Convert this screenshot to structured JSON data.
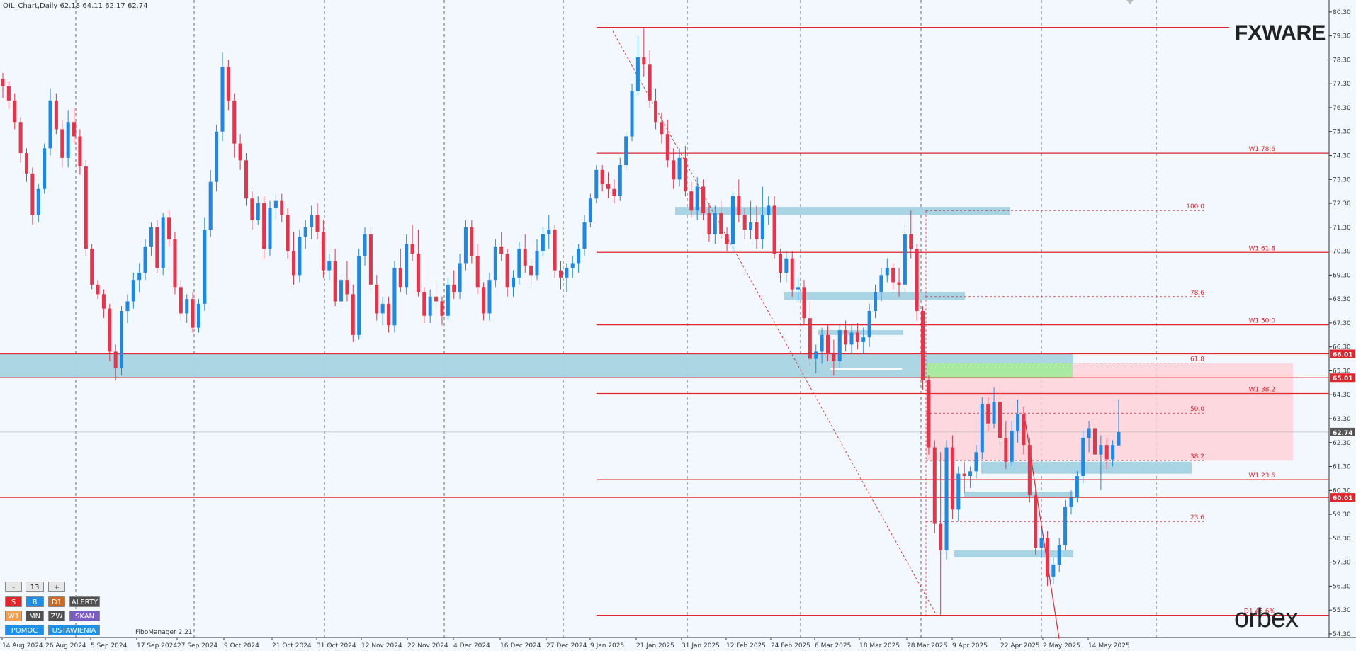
{
  "header": {
    "title": "OIL_Chart,Daily  62.18 64.11 62.17 62.74"
  },
  "brand": {
    "fxware": "FXWARE",
    "orbex": "orbex"
  },
  "chart_data": {
    "type": "candlestick",
    "symbol": "OIL_Chart",
    "timeframe": "Daily",
    "ylim": [
      54.15,
      80.8
    ],
    "y_ticks": [
      "80.30",
      "79.30",
      "78.30",
      "77.30",
      "76.30",
      "75.30",
      "74.30",
      "73.30",
      "72.30",
      "71.30",
      "70.30",
      "69.30",
      "68.30",
      "67.30",
      "66.30",
      "65.30",
      "64.30",
      "63.30",
      "62.30",
      "61.30",
      "60.30",
      "59.30",
      "58.30",
      "57.30",
      "56.30",
      "55.30",
      "54.30"
    ],
    "x_ticks": [
      "14 Aug 2024",
      "26 Aug 2024",
      "5 Sep 2024",
      "17 Sep 2024",
      "27 Sep 2024",
      "9 Oct 2024",
      "21 Oct 2024",
      "31 Oct 2024",
      "12 Nov 2024",
      "22 Nov 2024",
      "4 Dec 2024",
      "16 Dec 2024",
      "27 Dec 2024",
      "9 Jan 2025",
      "21 Jan 2025",
      "31 Jan 2025",
      "12 Feb 2025",
      "24 Feb 2025",
      "6 Mar 2025",
      "18 Mar 2025",
      "28 Mar 2025",
      "9 Apr 2025",
      "22 Apr 2025",
      "2 May 2025",
      "14 May 2025"
    ],
    "price_tags": [
      {
        "label": "66.01",
        "value": 66.01,
        "color": "#e3242b"
      },
      {
        "label": "65.01",
        "value": 65.01,
        "color": "#e3242b"
      },
      {
        "label": "62.74",
        "value": 62.74,
        "color": "#555555"
      },
      {
        "label": "60.01",
        "value": 60.01,
        "color": "#e3242b"
      }
    ],
    "weekly_fib_levels": [
      {
        "label": "W1 78.6",
        "value": 74.4
      },
      {
        "label": "W1 61.8",
        "value": 70.25
      },
      {
        "label": "W1 50.0",
        "value": 67.22
      },
      {
        "label": "W1 38.2",
        "value": 64.35
      },
      {
        "label": "W1 23.6",
        "value": 60.75
      },
      {
        "label": "D1 45.6%",
        "value": 55.08
      }
    ],
    "daily_fib_levels": [
      {
        "label": "100.0",
        "value": 72.0
      },
      {
        "label": "78.6",
        "value": 68.4
      },
      {
        "label": "61.8",
        "value": 65.62
      },
      {
        "label": "50.0",
        "value": 63.53
      },
      {
        "label": "38.2",
        "value": 61.55
      },
      {
        "label": "23.6",
        "value": 59.0
      }
    ],
    "top_level": 79.65,
    "candles": [
      [
        77.5,
        77.75,
        76.7,
        77.2
      ],
      [
        77.2,
        77.4,
        76.25,
        76.6
      ],
      [
        76.6,
        76.9,
        75.4,
        75.7
      ],
      [
        75.7,
        75.9,
        74.0,
        74.4
      ],
      [
        74.4,
        74.6,
        73.2,
        73.55
      ],
      [
        73.55,
        73.8,
        71.4,
        71.8
      ],
      [
        71.8,
        73.1,
        71.5,
        72.9
      ],
      [
        72.9,
        74.8,
        72.7,
        74.6
      ],
      [
        74.6,
        77.1,
        74.3,
        76.6
      ],
      [
        76.6,
        76.9,
        75.2,
        75.4
      ],
      [
        75.4,
        75.8,
        73.8,
        74.2
      ],
      [
        74.2,
        76.2,
        73.8,
        75.7
      ],
      [
        75.7,
        76.3,
        74.8,
        75.1
      ],
      [
        75.1,
        75.4,
        73.5,
        73.85
      ],
      [
        73.85,
        74.1,
        70.1,
        70.4
      ],
      [
        70.4,
        70.6,
        68.7,
        68.9
      ],
      [
        68.9,
        69.1,
        68.3,
        68.5
      ],
      [
        68.5,
        68.7,
        67.5,
        67.9
      ],
      [
        67.9,
        68.1,
        65.7,
        66.1
      ],
      [
        66.1,
        66.4,
        64.9,
        65.4
      ],
      [
        65.4,
        68.0,
        65.1,
        67.8
      ],
      [
        67.8,
        68.5,
        67.3,
        68.2
      ],
      [
        68.2,
        69.4,
        67.9,
        69.1
      ],
      [
        69.1,
        69.8,
        68.6,
        69.4
      ],
      [
        69.4,
        70.8,
        69.1,
        70.5
      ],
      [
        70.5,
        71.5,
        70.1,
        71.3
      ],
      [
        71.3,
        71.6,
        69.4,
        69.6
      ],
      [
        69.6,
        71.9,
        69.3,
        71.7
      ],
      [
        71.7,
        72.0,
        70.5,
        70.8
      ],
      [
        70.8,
        71.1,
        68.5,
        68.8
      ],
      [
        68.8,
        69.1,
        67.4,
        67.7
      ],
      [
        67.7,
        68.5,
        67.3,
        68.3
      ],
      [
        68.3,
        68.6,
        66.9,
        67.1
      ],
      [
        67.1,
        68.3,
        66.9,
        68.1
      ],
      [
        68.1,
        71.7,
        67.8,
        71.2
      ],
      [
        71.2,
        73.7,
        70.9,
        73.2
      ],
      [
        73.2,
        75.6,
        72.8,
        75.3
      ],
      [
        75.3,
        78.6,
        74.9,
        78.0
      ],
      [
        78.0,
        78.3,
        76.2,
        76.6
      ],
      [
        76.6,
        76.9,
        74.2,
        74.8
      ],
      [
        74.8,
        75.2,
        73.7,
        74.1
      ],
      [
        74.1,
        74.4,
        72.2,
        72.5
      ],
      [
        72.5,
        72.8,
        71.2,
        71.6
      ],
      [
        71.6,
        72.6,
        71.4,
        72.3
      ],
      [
        72.3,
        72.6,
        70.0,
        70.4
      ],
      [
        70.4,
        72.4,
        70.1,
        72.1
      ],
      [
        72.1,
        72.7,
        71.6,
        72.4
      ],
      [
        72.4,
        72.7,
        71.5,
        71.8
      ],
      [
        71.8,
        72.1,
        70.0,
        70.3
      ],
      [
        70.3,
        71.1,
        68.9,
        69.3
      ],
      [
        69.3,
        71.2,
        69.0,
        70.9
      ],
      [
        70.9,
        71.6,
        70.4,
        71.3
      ],
      [
        71.3,
        72.2,
        70.8,
        71.8
      ],
      [
        71.8,
        72.3,
        70.8,
        71.1
      ],
      [
        71.1,
        71.6,
        69.2,
        69.5
      ],
      [
        69.5,
        70.2,
        69.1,
        69.9
      ],
      [
        69.9,
        70.4,
        68.0,
        68.2
      ],
      [
        68.2,
        69.4,
        67.9,
        69.1
      ],
      [
        69.1,
        69.9,
        68.2,
        68.5
      ],
      [
        68.5,
        68.9,
        66.5,
        66.8
      ],
      [
        66.8,
        70.4,
        66.6,
        70.1
      ],
      [
        70.1,
        71.3,
        69.7,
        71.0
      ],
      [
        71.0,
        71.3,
        68.7,
        68.9
      ],
      [
        68.9,
        69.3,
        67.4,
        67.7
      ],
      [
        67.7,
        68.4,
        67.2,
        68.1
      ],
      [
        68.1,
        68.4,
        66.9,
        67.2
      ],
      [
        67.2,
        69.9,
        66.9,
        69.6
      ],
      [
        69.6,
        70.4,
        68.6,
        68.8
      ],
      [
        68.8,
        71.0,
        68.5,
        70.6
      ],
      [
        70.6,
        71.4,
        69.9,
        70.2
      ],
      [
        70.2,
        71.2,
        68.4,
        68.6
      ],
      [
        68.6,
        68.8,
        67.3,
        67.6
      ],
      [
        67.6,
        68.7,
        67.3,
        68.4
      ],
      [
        68.4,
        69.1,
        67.9,
        68.2
      ],
      [
        68.2,
        68.4,
        67.2,
        67.6
      ],
      [
        67.6,
        69.2,
        67.4,
        68.9
      ],
      [
        68.9,
        69.5,
        68.3,
        68.6
      ],
      [
        68.6,
        70.2,
        68.3,
        69.8
      ],
      [
        69.8,
        71.6,
        69.5,
        71.3
      ],
      [
        71.3,
        71.6,
        69.8,
        70.1
      ],
      [
        70.1,
        70.6,
        68.5,
        68.8
      ],
      [
        68.8,
        69.0,
        67.4,
        67.7
      ],
      [
        67.7,
        69.4,
        67.4,
        69.1
      ],
      [
        69.1,
        70.8,
        68.8,
        70.5
      ],
      [
        70.5,
        71.1,
        69.9,
        70.2
      ],
      [
        70.2,
        70.4,
        68.4,
        68.8
      ],
      [
        68.8,
        69.5,
        68.4,
        69.2
      ],
      [
        69.2,
        70.7,
        68.9,
        70.4
      ],
      [
        70.4,
        71.0,
        69.4,
        69.7
      ],
      [
        69.7,
        70.0,
        68.9,
        69.3
      ],
      [
        69.3,
        70.8,
        69.1,
        70.3
      ],
      [
        70.3,
        71.3,
        70.1,
        71.0
      ],
      [
        71.0,
        71.8,
        70.4,
        71.2
      ],
      [
        71.2,
        71.4,
        69.2,
        69.5
      ],
      [
        69.5,
        69.9,
        68.7,
        69.2
      ],
      [
        69.2,
        69.8,
        68.6,
        69.6
      ],
      [
        69.6,
        70.1,
        69.2,
        69.8
      ],
      [
        69.8,
        70.6,
        69.4,
        70.4
      ],
      [
        70.4,
        71.8,
        70.1,
        71.5
      ],
      [
        71.5,
        72.7,
        71.3,
        72.5
      ],
      [
        72.5,
        73.9,
        72.3,
        73.7
      ],
      [
        73.7,
        73.9,
        72.8,
        73.1
      ],
      [
        73.1,
        73.6,
        72.5,
        72.9
      ],
      [
        72.9,
        73.3,
        72.3,
        72.6
      ],
      [
        72.6,
        74.2,
        72.4,
        73.9
      ],
      [
        73.9,
        75.3,
        73.7,
        75.1
      ],
      [
        75.1,
        77.3,
        74.9,
        77.0
      ],
      [
        77.0,
        79.3,
        76.8,
        78.4
      ],
      [
        78.4,
        79.6,
        77.6,
        78.1
      ],
      [
        78.1,
        78.7,
        76.3,
        76.6
      ],
      [
        76.6,
        77.1,
        75.4,
        75.7
      ],
      [
        75.7,
        76.1,
        74.8,
        75.2
      ],
      [
        75.2,
        75.8,
        73.8,
        74.1
      ],
      [
        74.1,
        74.6,
        72.9,
        73.3
      ],
      [
        73.3,
        74.6,
        73.0,
        74.2
      ],
      [
        74.2,
        74.7,
        72.6,
        72.8
      ],
      [
        72.8,
        73.2,
        71.7,
        72.0
      ],
      [
        72.0,
        73.4,
        71.6,
        73.0
      ],
      [
        73.0,
        73.3,
        71.6,
        71.9
      ],
      [
        71.9,
        72.3,
        70.7,
        71.0
      ],
      [
        71.0,
        72.2,
        70.6,
        71.9
      ],
      [
        71.9,
        72.4,
        70.8,
        71.0
      ],
      [
        71.0,
        71.3,
        70.3,
        70.6
      ],
      [
        70.6,
        72.8,
        70.3,
        72.6
      ],
      [
        72.6,
        73.3,
        71.5,
        71.8
      ],
      [
        71.8,
        72.1,
        70.8,
        71.2
      ],
      [
        71.2,
        72.4,
        70.8,
        71.5
      ],
      [
        71.5,
        72.2,
        70.4,
        70.8
      ],
      [
        70.8,
        73.0,
        70.4,
        71.8
      ],
      [
        71.8,
        72.6,
        71.4,
        72.2
      ],
      [
        72.2,
        72.6,
        70.0,
        70.2
      ],
      [
        70.2,
        70.4,
        69.0,
        69.4
      ],
      [
        69.4,
        70.3,
        69.0,
        70.0
      ],
      [
        70.0,
        70.3,
        68.4,
        68.7
      ],
      [
        68.7,
        69.2,
        68.2,
        68.8
      ],
      [
        68.8,
        69.1,
        67.2,
        67.5
      ],
      [
        67.5,
        68.2,
        65.5,
        65.8
      ],
      [
        65.8,
        66.4,
        65.2,
        66.1
      ],
      [
        66.1,
        67.1,
        65.6,
        66.8
      ],
      [
        66.8,
        67.2,
        65.7,
        66.0
      ],
      [
        66.0,
        66.6,
        65.1,
        65.7
      ],
      [
        65.7,
        67.2,
        65.4,
        67.0
      ],
      [
        67.0,
        67.4,
        66.1,
        66.4
      ],
      [
        66.4,
        67.2,
        66.0,
        66.9
      ],
      [
        66.9,
        67.3,
        66.2,
        66.5
      ],
      [
        66.5,
        67.1,
        66.0,
        66.7
      ],
      [
        66.7,
        68.1,
        66.3,
        67.8
      ],
      [
        67.8,
        68.9,
        67.5,
        68.6
      ],
      [
        68.6,
        69.6,
        68.2,
        69.3
      ],
      [
        69.3,
        70.0,
        69.0,
        69.6
      ],
      [
        69.6,
        69.8,
        68.7,
        69.0
      ],
      [
        69.0,
        69.6,
        68.4,
        68.9
      ],
      [
        68.9,
        71.4,
        68.6,
        71.0
      ],
      [
        71.0,
        72.0,
        70.0,
        70.4
      ],
      [
        70.4,
        70.6,
        67.4,
        67.8
      ],
      [
        67.8,
        68.0,
        64.5,
        64.9
      ],
      [
        64.9,
        65.1,
        61.8,
        62.1
      ],
      [
        62.1,
        62.4,
        58.5,
        58.9
      ],
      [
        58.9,
        61.9,
        55.1,
        57.8
      ],
      [
        57.8,
        62.4,
        57.4,
        62.1
      ],
      [
        62.1,
        62.6,
        59.1,
        59.5
      ],
      [
        59.5,
        61.3,
        59.0,
        61.0
      ],
      [
        61.0,
        61.5,
        60.2,
        60.9
      ],
      [
        60.9,
        61.3,
        60.4,
        61.1
      ],
      [
        61.1,
        62.2,
        60.8,
        61.9
      ],
      [
        61.9,
        64.2,
        61.6,
        63.9
      ],
      [
        63.9,
        64.2,
        62.8,
        63.1
      ],
      [
        63.1,
        64.6,
        62.9,
        64.0
      ],
      [
        64.0,
        64.7,
        62.2,
        62.5
      ],
      [
        62.5,
        63.2,
        61.2,
        61.5
      ],
      [
        61.5,
        63.2,
        61.3,
        62.8
      ],
      [
        62.8,
        64.1,
        62.3,
        63.5
      ],
      [
        63.5,
        63.8,
        61.8,
        62.2
      ],
      [
        62.2,
        62.5,
        59.8,
        60.1
      ],
      [
        60.1,
        60.4,
        57.6,
        57.9
      ],
      [
        57.9,
        58.7,
        57.5,
        58.3
      ],
      [
        58.3,
        58.6,
        56.3,
        56.7
      ],
      [
        56.7,
        57.5,
        56.4,
        57.2
      ],
      [
        57.2,
        58.3,
        56.9,
        58.0
      ],
      [
        58.0,
        59.9,
        57.8,
        59.6
      ],
      [
        59.6,
        60.3,
        59.3,
        60.0
      ],
      [
        60.0,
        61.1,
        59.8,
        60.9
      ],
      [
        60.9,
        62.8,
        60.6,
        62.5
      ],
      [
        62.5,
        63.2,
        61.9,
        62.9
      ],
      [
        62.9,
        63.1,
        61.5,
        61.8
      ],
      [
        61.8,
        62.6,
        60.3,
        62.2
      ],
      [
        62.2,
        62.5,
        61.2,
        61.6
      ],
      [
        61.6,
        62.4,
        61.3,
        62.2
      ],
      [
        62.18,
        64.11,
        62.17,
        62.74
      ]
    ]
  },
  "panel": {
    "zoom_minus": "-",
    "zoom_value": "13",
    "zoom_plus": "+",
    "btn_s": "S",
    "btn_b": "B",
    "btn_d1": "D1",
    "btn_alerty": "ALERTY",
    "btn_w1": "W1",
    "btn_mn": "MN",
    "btn_zw": "ZW",
    "btn_skan": "SKAN",
    "btn_pomoc": "POMOC",
    "btn_ustawienia": "USTAWIENIA",
    "fibo_manager": "FiboManager 2.21"
  }
}
